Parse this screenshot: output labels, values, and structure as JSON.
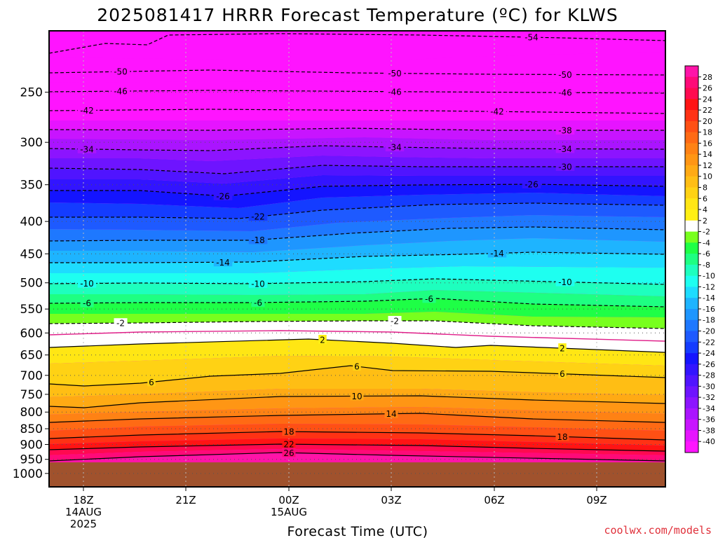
{
  "chart_data": {
    "type": "heatmap",
    "title": "2025081417 HRRR Forecast Temperature (ºC) for KLWS",
    "xlabel": "Forecast Time (UTC)",
    "ylabel": "",
    "credit": "coolwx.com/models",
    "y_axis": {
      "scale": "pressure",
      "unit": "hPa",
      "ylim": [
        1050,
        200
      ],
      "ticks": [
        "250",
        "300",
        "350",
        "400",
        "450",
        "500",
        "550",
        "600",
        "650",
        "700",
        "750",
        "800",
        "850",
        "900",
        "950",
        "1000"
      ]
    },
    "x_axis": {
      "ticks": [
        {
          "label": "18Z",
          "date": "14AUG",
          "year": "2025"
        },
        {
          "label": "21Z",
          "date": "",
          "year": ""
        },
        {
          "label": "00Z",
          "date": "15AUG",
          "year": ""
        },
        {
          "label": "03Z",
          "date": "",
          "year": ""
        },
        {
          "label": "06Z",
          "date": "",
          "year": ""
        },
        {
          "label": "09Z",
          "date": "",
          "year": ""
        }
      ]
    },
    "colorbar": {
      "labels": [
        "28",
        "26",
        "24",
        "22",
        "20",
        "18",
        "16",
        "14",
        "12",
        "10",
        "8",
        "6",
        "4",
        "2",
        "-2",
        "-4",
        "-6",
        "-8",
        "-10",
        "-12",
        "-14",
        "-16",
        "-18",
        "-20",
        "-22",
        "-24",
        "-26",
        "-28",
        "-30",
        "-32",
        "-34",
        "-36",
        "-38",
        "-40"
      ],
      "colors": [
        "#ff14a8",
        "#ff0a78",
        "#ff0a50",
        "#ff1414",
        "#ff3214",
        "#ff5014",
        "#ff6a14",
        "#ff8214",
        "#ff9614",
        "#ffaa14",
        "#ffbe14",
        "#ffd214",
        "#ffe614",
        "#fff014",
        "#ffffff",
        "#78ff1e",
        "#1eff46",
        "#1eff82",
        "#1effbe",
        "#1efff0",
        "#1edcff",
        "#1eb4ff",
        "#1e96ff",
        "#1e78ff",
        "#1e5aff",
        "#143cff",
        "#1414ff",
        "#3214ff",
        "#5014ff",
        "#6e14ff",
        "#8c14ff",
        "#aa14ff",
        "#c814ff",
        "#e614ff",
        "#ff14ff"
      ]
    },
    "ground_color": "#a0522d",
    "contours": [
      {
        "value": -54,
        "labels": [
          "-54"
        ]
      },
      {
        "value": -50,
        "labels": [
          "-50",
          "-50",
          "-50"
        ]
      },
      {
        "value": -46,
        "labels": [
          "-46",
          "-46",
          "-46"
        ]
      },
      {
        "value": -42,
        "labels": [
          "-42",
          "-42"
        ]
      },
      {
        "value": -38,
        "labels": [
          "-38"
        ]
      },
      {
        "value": -34,
        "labels": [
          "-34",
          "-34",
          "-34"
        ]
      },
      {
        "value": -30,
        "labels": [
          "-30"
        ]
      },
      {
        "value": -26,
        "labels": [
          "-26",
          "-26"
        ]
      },
      {
        "value": -22,
        "labels": [
          "-22"
        ]
      },
      {
        "value": -18,
        "labels": [
          "-18"
        ]
      },
      {
        "value": -14,
        "labels": [
          "-14",
          "-14"
        ]
      },
      {
        "value": -10,
        "labels": [
          "-10",
          "-10",
          "-10"
        ]
      },
      {
        "value": -6,
        "labels": [
          "-6",
          "-6",
          "-6"
        ]
      },
      {
        "value": -2,
        "labels": [
          "-2",
          "-2"
        ]
      },
      {
        "value": 2,
        "labels": [
          "2",
          "2"
        ]
      },
      {
        "value": 6,
        "labels": [
          "6",
          "6",
          "6"
        ]
      },
      {
        "value": 10,
        "labels": [
          "10"
        ]
      },
      {
        "value": 14,
        "labels": [
          "14"
        ]
      },
      {
        "value": 18,
        "labels": [
          "18",
          "18"
        ]
      },
      {
        "value": 22,
        "labels": [
          "22"
        ]
      },
      {
        "value": 26,
        "labels": [
          "26"
        ]
      }
    ]
  }
}
